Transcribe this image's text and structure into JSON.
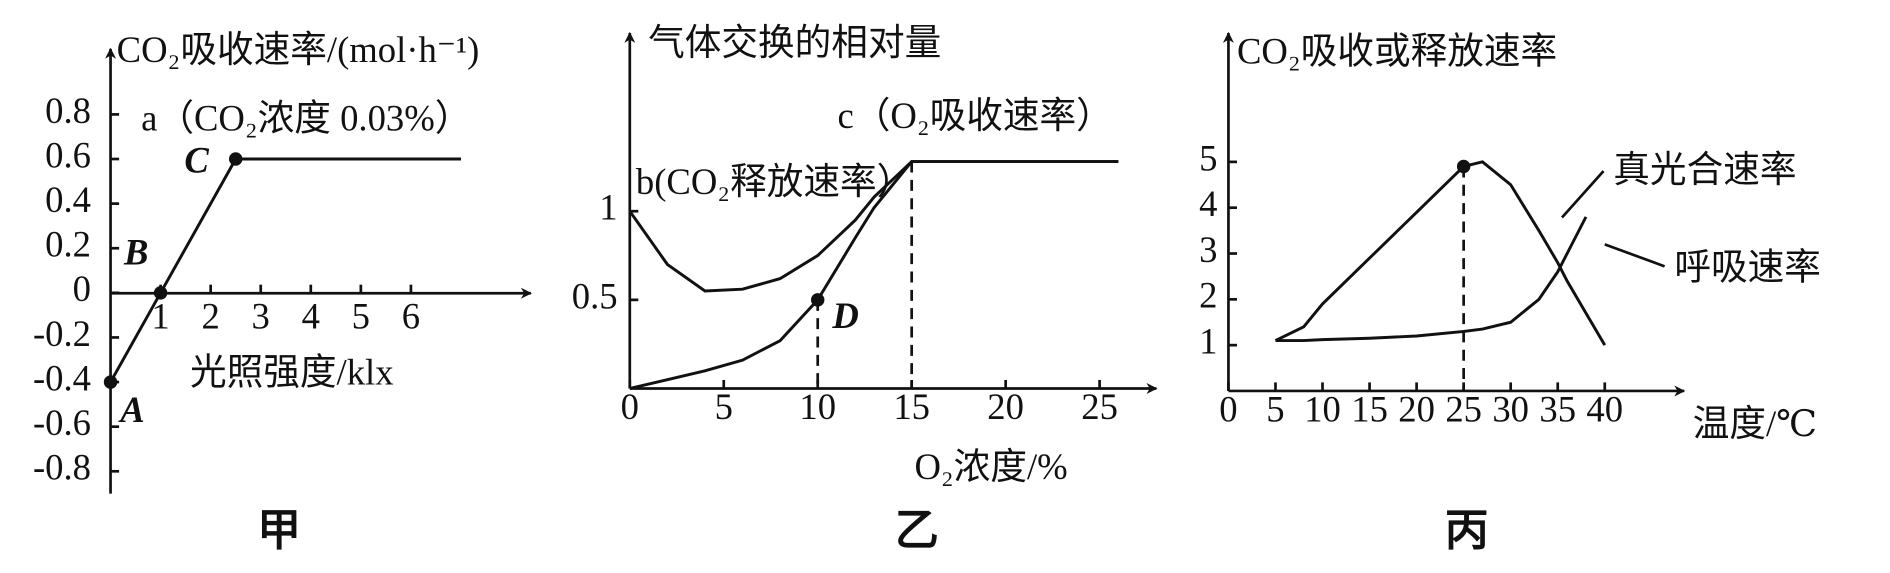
{
  "chart_data": [
    {
      "type": "line",
      "title": "CO₂吸收速率/(mol·h⁻¹)",
      "xlabel": "光照强度/klx",
      "caption": "甲",
      "annotations": [
        "a（CO₂浓度 0.03%）"
      ],
      "x": [
        0,
        1,
        2.5,
        7
      ],
      "series": [
        {
          "color": "#111111",
          "values": [
            -0.4,
            0,
            0.6,
            0.6
          ]
        }
      ],
      "points": [
        {
          "label": "A",
          "x": 0,
          "y": -0.4
        },
        {
          "label": "B",
          "x": 1,
          "y": 0
        },
        {
          "label": "C",
          "x": 2.5,
          "y": 0.6
        }
      ],
      "xlim": [
        0,
        8.2
      ],
      "ylim": [
        -0.9,
        1.05
      ],
      "xticks": [
        1,
        2,
        3,
        4,
        5,
        6
      ],
      "yticks": [
        -0.8,
        -0.6,
        -0.4,
        -0.2,
        0,
        0.2,
        0.4,
        0.6,
        0.8
      ]
    },
    {
      "type": "line",
      "title": "气体交换的相对量",
      "xlabel": "O₂浓度/%",
      "caption": "乙",
      "x": [
        0,
        2,
        4,
        6,
        8,
        10,
        12,
        13,
        15,
        26
      ],
      "series": [
        {
          "name": "b(CO₂释放速率）",
          "color": "#111111",
          "values": [
            1.0,
            0.7,
            0.55,
            0.56,
            0.62,
            0.75,
            0.95,
            1.08,
            1.28,
            1.28
          ]
        },
        {
          "name": "c（O₂吸收速率）",
          "color": "#111111",
          "values": [
            0,
            0.05,
            0.1,
            0.16,
            0.27,
            0.5,
            0.85,
            1.02,
            1.28,
            1.28
          ]
        }
      ],
      "points": [
        {
          "label": "D",
          "x": 10,
          "y": 0.5,
          "dashed": true
        }
      ],
      "guides": [
        {
          "x": 15,
          "y": 1.28
        }
      ],
      "xlim": [
        0,
        27.5
      ],
      "ylim": [
        0,
        1.95
      ],
      "xticks": [
        0,
        5,
        10,
        15,
        20,
        25
      ],
      "yticks": [
        0.5,
        1
      ]
    },
    {
      "type": "line",
      "title": "CO₂吸收或释放速率",
      "xlabel": "温度/℃",
      "caption": "丙",
      "x": [
        5,
        8,
        10,
        15,
        20,
        25,
        27,
        30,
        33,
        35,
        36,
        38,
        40
      ],
      "series": [
        {
          "name": "真光合速率",
          "color": "#111111",
          "values": [
            1.1,
            1.4,
            1.9,
            2.9,
            3.9,
            4.9,
            5.0,
            4.5,
            3.5,
            2.8,
            2.4,
            1.7,
            1.0
          ]
        },
        {
          "name": "呼吸速率",
          "color": "#111111",
          "values": [
            1.1,
            1.1,
            1.12,
            1.15,
            1.2,
            1.3,
            1.35,
            1.5,
            2.0,
            2.6,
            3.0,
            3.8,
            null
          ]
        }
      ],
      "points": [
        {
          "x": 25,
          "y": 4.9,
          "dashed": true
        }
      ],
      "xlim": [
        0,
        47.4
      ],
      "ylim": [
        0,
        7.6
      ],
      "xticks": [
        0,
        5,
        10,
        15,
        20,
        25,
        30,
        35,
        40
      ],
      "yticks": [
        1,
        2,
        3,
        4,
        5
      ]
    }
  ]
}
